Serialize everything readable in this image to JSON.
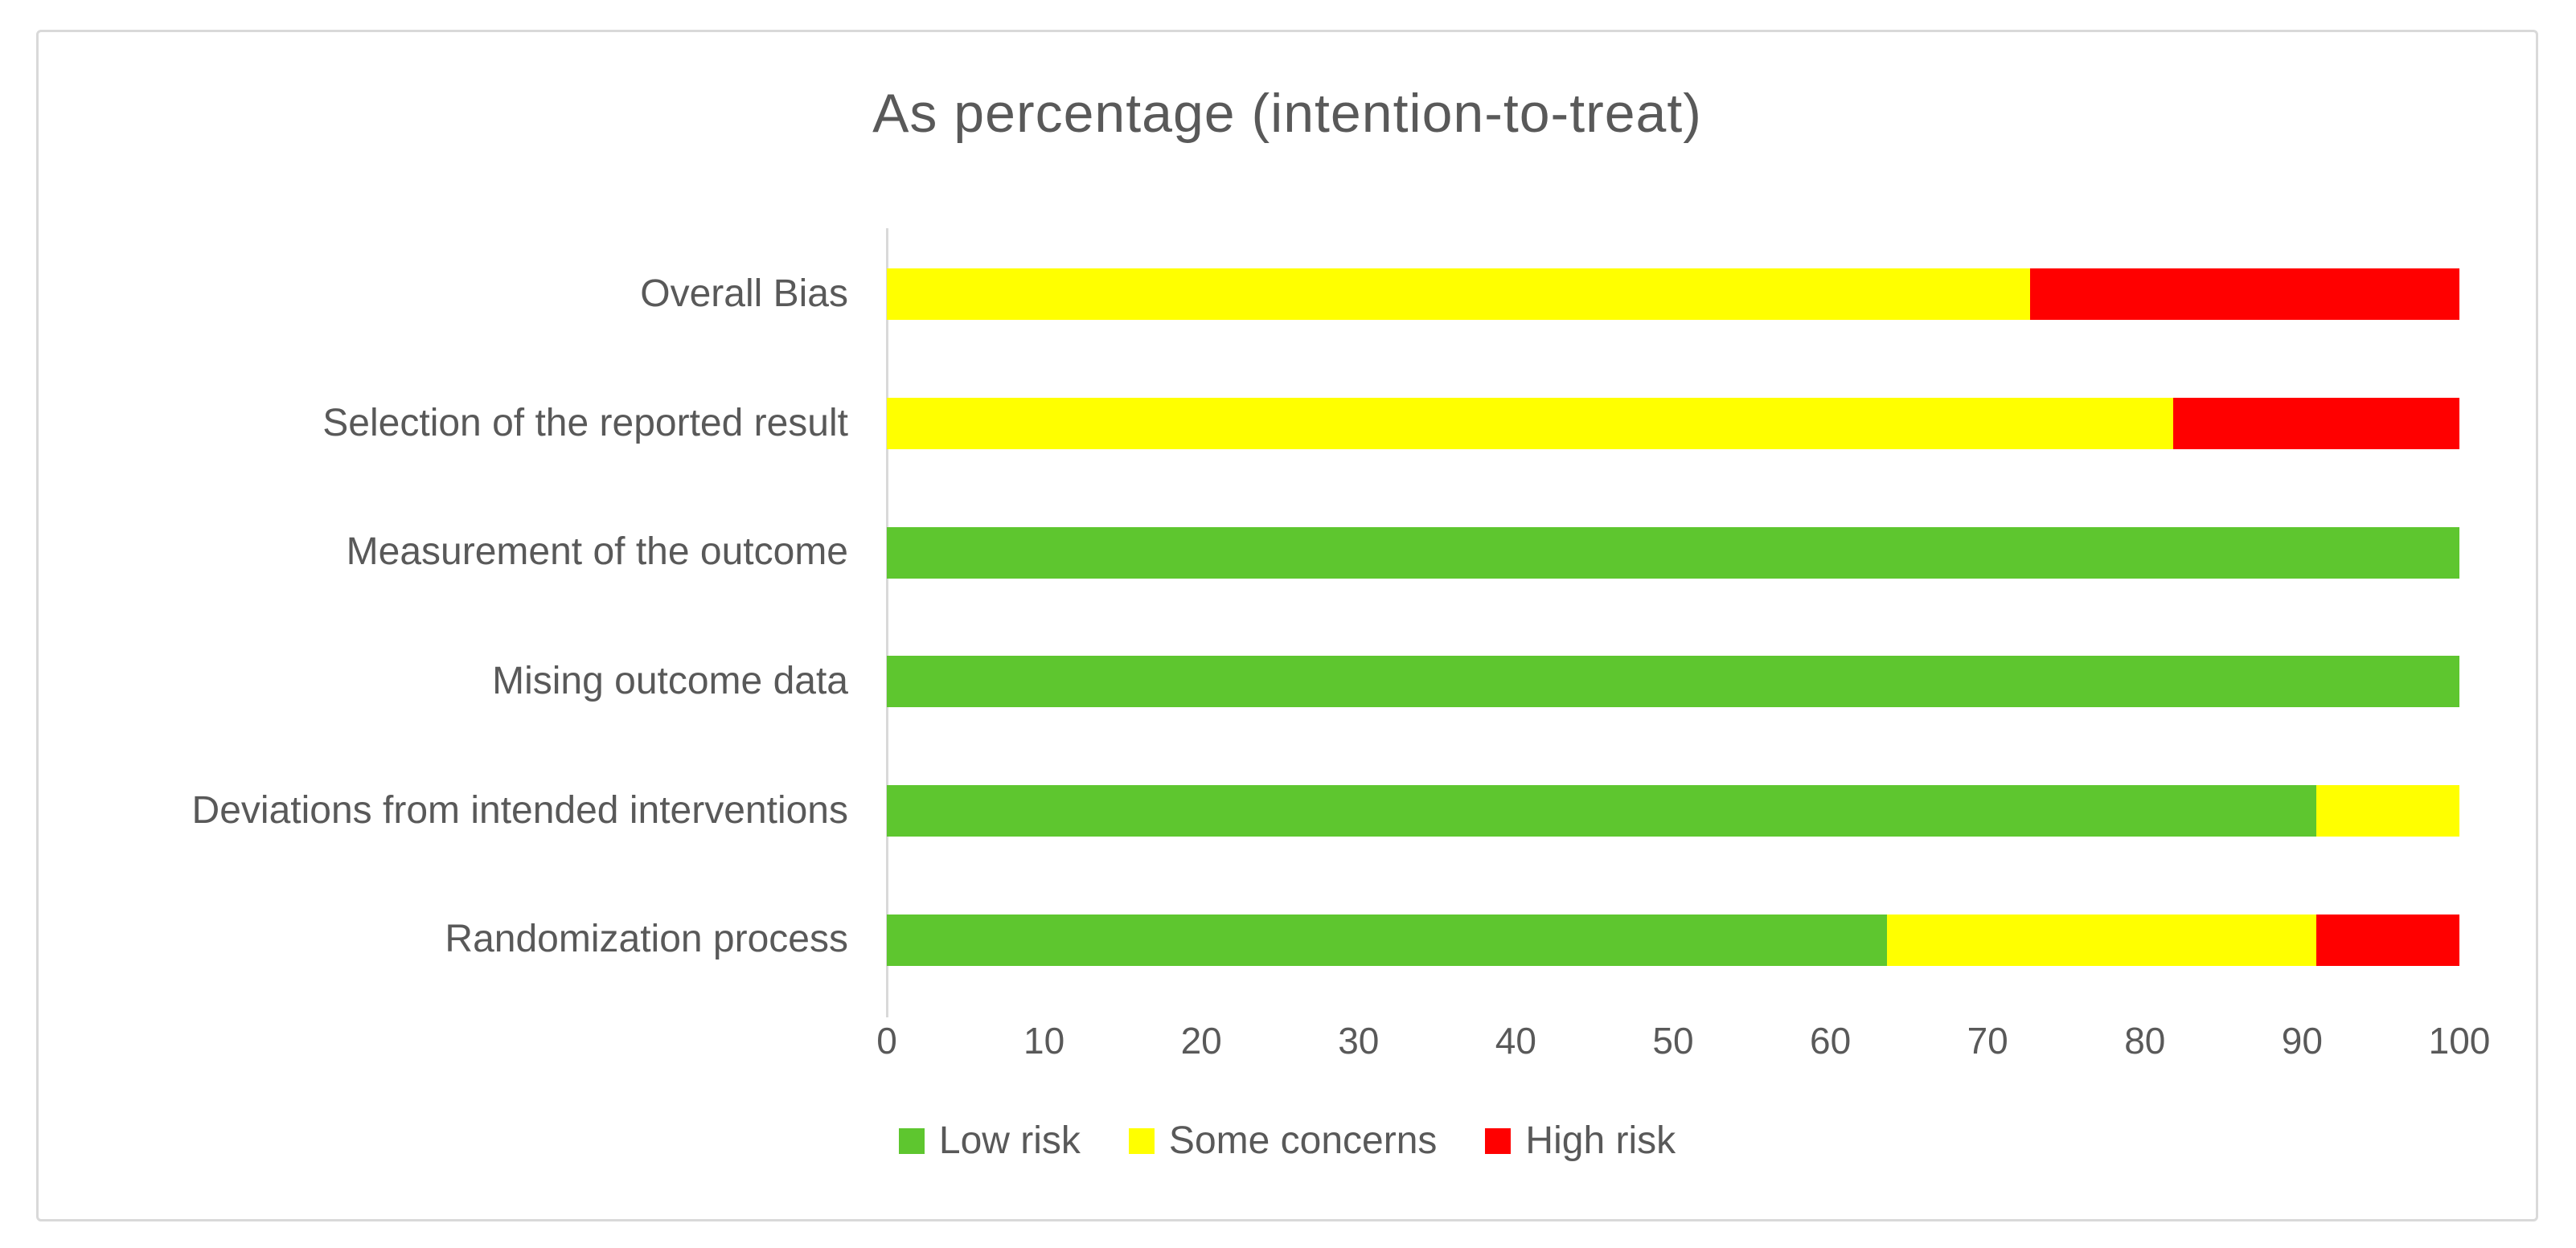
{
  "chart_data": {
    "type": "bar",
    "orientation": "horizontal",
    "stacked": true,
    "title": "As percentage (intention-to-treat)",
    "categories": [
      "Overall Bias",
      "Selection of the reported result",
      "Measurement of the outcome",
      "Mising outcome data",
      "Deviations from intended interventions",
      "Randomization process"
    ],
    "series": [
      {
        "name": "Low risk",
        "color": "#5ec62f",
        "values": [
          0,
          0,
          100,
          100,
          90.9,
          63.6
        ]
      },
      {
        "name": "Some concerns",
        "color": "#ffff00",
        "values": [
          72.7,
          81.8,
          0,
          0,
          9.1,
          27.3
        ]
      },
      {
        "name": "High risk",
        "color": "#ff0000",
        "values": [
          27.3,
          18.2,
          0,
          0,
          0,
          9.1
        ]
      }
    ],
    "xlabel": "",
    "ylabel": "",
    "xlim": [
      0,
      100
    ],
    "x_ticks": [
      0,
      10,
      20,
      30,
      40,
      50,
      60,
      70,
      80,
      90,
      100
    ],
    "grid": false,
    "legend_position": "bottom",
    "colors": {
      "title_text": "#595959",
      "axis_text": "#595959",
      "axis_line": "#d9d9d9",
      "frame_border": "#d9d9d9",
      "background": "#ffffff"
    }
  }
}
